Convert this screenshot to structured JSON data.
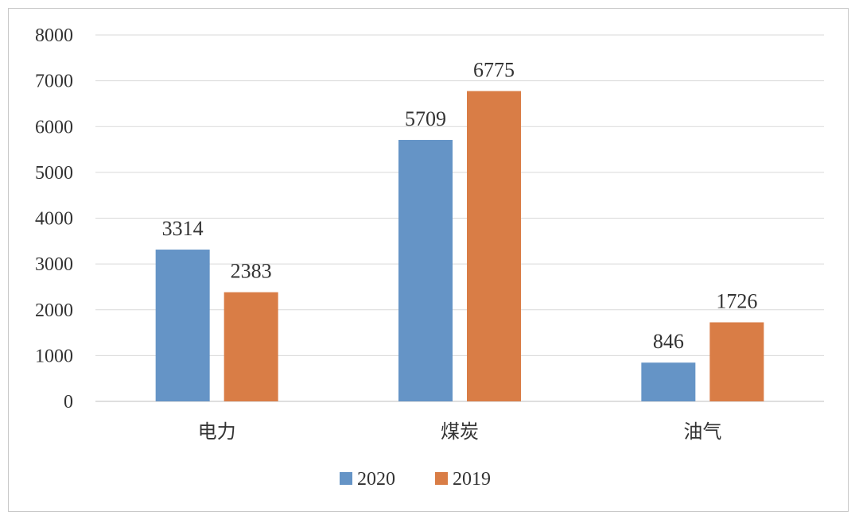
{
  "chart_data": {
    "type": "bar",
    "title": "",
    "xlabel": "",
    "ylabel": "",
    "ylim": [
      0,
      8000
    ],
    "yticks": [
      0,
      1000,
      2000,
      3000,
      4000,
      5000,
      6000,
      7000,
      8000
    ],
    "grid": true,
    "legend_position": "bottom-center",
    "categories": [
      "电力",
      "煤炭",
      "油气"
    ],
    "series": [
      {
        "name": "2020",
        "color": "#6594c6",
        "values": [
          3314,
          5709,
          846
        ]
      },
      {
        "name": "2019",
        "color": "#d97d46",
        "values": [
          2383,
          6775,
          1726
        ]
      }
    ]
  }
}
